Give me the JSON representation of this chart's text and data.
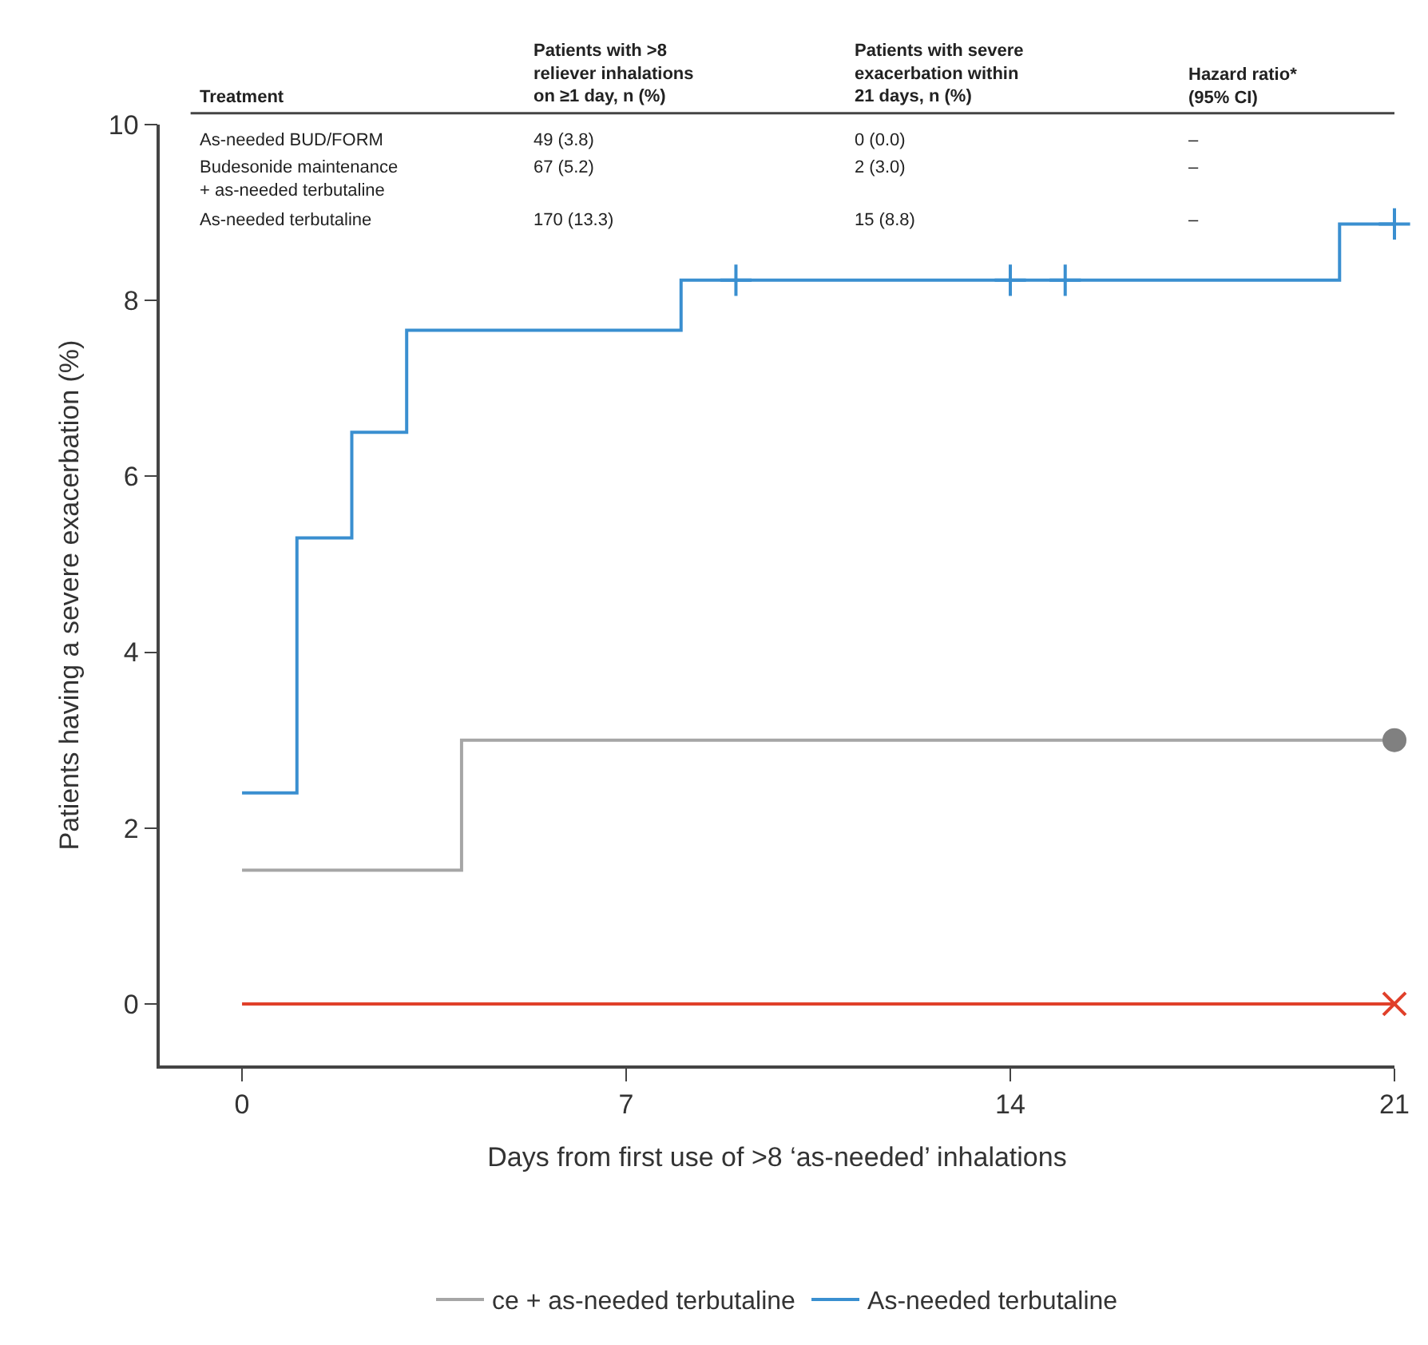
{
  "chart_data": {
    "type": "step",
    "xlabel": "Days from first use of >8 ‘as-needed’ inhalations",
    "ylabel": "Patients having a severe exacerbation (%)",
    "xlim": [
      -1.5,
      21
    ],
    "xticks": [
      0,
      7,
      14,
      21
    ],
    "ylim": [
      -0.7,
      10
    ],
    "yticks": [
      0,
      2,
      4,
      6,
      8,
      10
    ],
    "legend": "bottom",
    "series": [
      {
        "color": "#e0402a",
        "x": [
          0,
          21
        ],
        "values": [
          0,
          0
        ]
      },
      {
        "name": "ce + as-needed terbutaline",
        "color": "#a6a6a6",
        "x": [
          0,
          4,
          21
        ],
        "values": [
          1.52,
          3.0,
          3.0
        ]
      },
      {
        "name": "As-needed terbutaline",
        "color": "#3a8fd0",
        "x": [
          0,
          1,
          2,
          3,
          8,
          20,
          21
        ],
        "values": [
          2.4,
          5.3,
          6.5,
          7.66,
          8.23,
          8.87,
          8.87
        ]
      },
      {
        "type": "scatter",
        "marker": "x",
        "color": "#e0402a",
        "x": [
          21
        ],
        "values": [
          0
        ]
      },
      {
        "type": "scatter",
        "marker": "circle",
        "color": "#808080",
        "x": [
          21
        ],
        "values": [
          3.0
        ]
      },
      {
        "type": "scatter",
        "marker": "cross",
        "color": "#3a8fd0",
        "x": [
          9,
          14,
          15,
          21
        ],
        "values": [
          8.23,
          8.23,
          8.23,
          8.87
        ]
      }
    ],
    "annotations": [
      "Treatment",
      "Patients with >8\nreliever inhalations\non ≥1 day, n (%)",
      "Patients with severe\nexacerbation within\n21 days, n (%)",
      "Hazard ratio*\n(95% CI)",
      "As-needed BUD/FORM",
      "49 (3.8)",
      "0 (0.0)",
      "–",
      "Budesonide maintenance\n+ as-needed terbutaline",
      "67 (5.2)",
      "2 (3.0)",
      "–",
      "As-needed terbutaline",
      "170 (13.3)",
      "15 (8.8)",
      "–"
    ]
  }
}
